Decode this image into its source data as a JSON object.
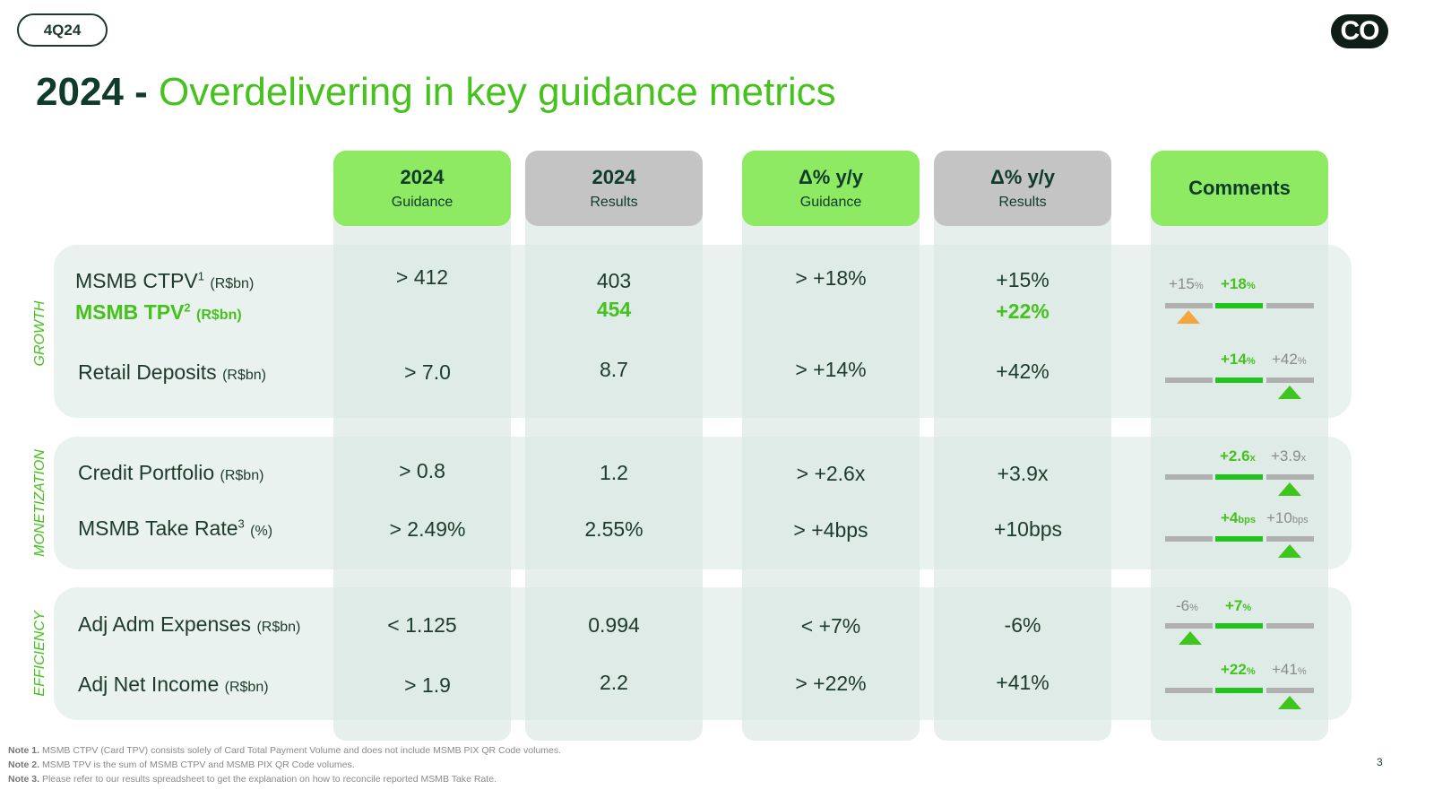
{
  "header": {
    "quarter": "4Q24",
    "logo": "CO",
    "title_year": "2024 -",
    "title_text": "Overdelivering in key guidance metrics"
  },
  "columns": [
    {
      "line1": "2024",
      "line2": "Guidance"
    },
    {
      "line1": "2024",
      "line2": "Results"
    },
    {
      "line1": "Δ% y/y",
      "line2": "Guidance"
    },
    {
      "line1": "Δ% y/y",
      "line2": "Results"
    },
    {
      "line1": "Comments"
    }
  ],
  "sections": {
    "growth": "GROWTH",
    "monetization": "MONETIZATION",
    "efficiency": "EFFICIENCY"
  },
  "rows": [
    {
      "name": "MSMB CTPV",
      "sup": "1",
      "unit": "(R$bn)",
      "guidance": "> 412",
      "result": "403",
      "delta_guidance": "> +18%",
      "delta_result": "+15%"
    },
    {
      "name": "MSMB TPV",
      "sup": "2",
      "unit": "(R$bn)",
      "result": "454",
      "delta_result": "+22%"
    },
    {
      "name": "Retail Deposits",
      "unit": "(R$bn)",
      "guidance": "> 7.0",
      "result": "8.7",
      "delta_guidance": "> +14%",
      "delta_result": "+42%"
    },
    {
      "name": "Credit Portfolio",
      "unit": "(R$bn)",
      "guidance": "> 0.8",
      "result": "1.2",
      "delta_guidance": "> +2.6x",
      "delta_result": "+3.9x"
    },
    {
      "name": "MSMB Take Rate",
      "sup": "3",
      "unit": "(%)",
      "guidance": "> 2.49%",
      "result": "2.55%",
      "delta_guidance": "> +4bps",
      "delta_result": "+10bps"
    },
    {
      "name": "Adj Adm Expenses",
      "unit": "(R$bn)",
      "guidance": "< 1.125",
      "result": "0.994",
      "delta_guidance": "< +7%",
      "delta_result": "-6%"
    },
    {
      "name": "Adj Net Income",
      "unit": "(R$bn)",
      "guidance": "> 1.9",
      "result": "2.2",
      "delta_guidance": "> +22%",
      "delta_result": "+41%"
    }
  ],
  "comments": [
    {
      "guidance_num": "+18",
      "guidance_unit": "%",
      "result_num": "+15",
      "result_unit": "%",
      "marker": "below-guidance",
      "marker_color": "#f4a540"
    },
    {
      "guidance_num": "+14",
      "guidance_unit": "%",
      "result_num": "+42",
      "result_unit": "%",
      "marker": "above-guidance",
      "marker_color": "#3fc61e"
    },
    {
      "guidance_num": "+2.6",
      "guidance_unit": "x",
      "result_num": "+3.9",
      "result_unit": "x",
      "marker": "above-guidance",
      "marker_color": "#3fc61e"
    },
    {
      "guidance_num": "+4",
      "guidance_unit": "bps",
      "result_num": "+10",
      "result_unit": "bps",
      "marker": "above-guidance",
      "marker_color": "#3fc61e"
    },
    {
      "guidance_num": "+7",
      "guidance_unit": "%",
      "result_num": "-6",
      "result_unit": "%",
      "marker": "below-guidance",
      "marker_color": "#3fc61e"
    },
    {
      "guidance_num": "+22",
      "guidance_unit": "%",
      "result_num": "+41",
      "result_unit": "%",
      "marker": "above-guidance",
      "marker_color": "#3fc61e"
    }
  ],
  "notes": [
    {
      "label": "Note 1.",
      "text": "MSMB CTPV (Card TPV) consists solely of Card Total Payment Volume and does not include MSMB PIX QR Code volumes."
    },
    {
      "label": "Note 2.",
      "text": "MSMB TPV is the sum of MSMB CTPV and MSMB PIX QR Code volumes."
    },
    {
      "label": "Note 3.",
      "text": "Please refer to our results spreadsheet to get the explanation on how to reconcile reported MSMB Take Rate."
    }
  ],
  "page_number": "3",
  "colors": {
    "accent_green": "#46c11e",
    "dark_green": "#0e3b2a",
    "header_green": "#8ee963",
    "header_grey": "#c4c4c4"
  }
}
